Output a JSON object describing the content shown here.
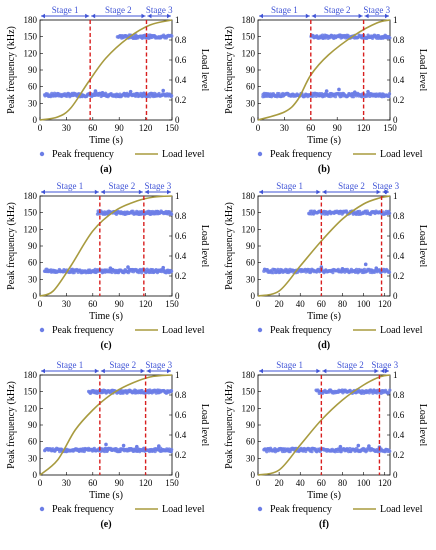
{
  "legend": {
    "peak": "Peak frequency",
    "load": "Load level"
  },
  "colors": {
    "peak": "#6c7ee6",
    "load": "#a89b3f",
    "stage": "#d81f1f",
    "arrow": "#3f53d6"
  },
  "panels": [
    {
      "label": "(a)",
      "stages": [
        "Stage 1",
        "Stage 2",
        "Stage 3"
      ],
      "chart_data": {
        "type": "scatter",
        "xlabel": "Time (s)",
        "ylabel": "Peak frequency (kHz)",
        "y2label": "Load level",
        "xlim": [
          0,
          150
        ],
        "xticks": [
          0,
          30,
          60,
          90,
          120,
          150
        ],
        "ylim": [
          0,
          180
        ],
        "yticks": [
          0,
          30,
          60,
          90,
          120,
          150,
          180
        ],
        "y2lim": [
          0,
          1
        ],
        "y2ticks": [
          0,
          0.2,
          0.4,
          0.6,
          0.8,
          1
        ],
        "boundaries": [
          57,
          121
        ],
        "series": [
          {
            "name": "Peak frequency",
            "bands": [
              {
                "x": [
                  5,
                  150
                ],
                "y": 45
              },
              {
                "x": [
                  88,
                  150
                ],
                "y": 150
              }
            ],
            "extra": [
              [
                63,
                52
              ],
              [
                71,
                49
              ],
              [
                103,
                51
              ],
              [
                118,
                48
              ],
              [
                140,
                53
              ]
            ]
          },
          {
            "name": "Load level",
            "load": [
              [
                0,
                0
              ],
              [
                20,
                0.03
              ],
              [
                35,
                0.12
              ],
              [
                55,
                0.38
              ],
              [
                75,
                0.62
              ],
              [
                100,
                0.82
              ],
              [
                125,
                0.95
              ],
              [
                150,
                1
              ]
            ]
          }
        ]
      }
    },
    {
      "label": "(b)",
      "stages": [
        "Stage 1",
        "Stage 2",
        "Stage 3"
      ],
      "chart_data": {
        "type": "scatter",
        "xlabel": "Time (s)",
        "ylabel": "Peak frequency (kHz)",
        "y2label": "Load level",
        "xlim": [
          0,
          150
        ],
        "xticks": [
          0,
          30,
          60,
          90,
          120,
          150
        ],
        "ylim": [
          0,
          180
        ],
        "yticks": [
          0,
          30,
          60,
          90,
          120,
          150,
          180
        ],
        "y2lim": [
          0,
          1
        ],
        "y2ticks": [
          0,
          0.2,
          0.4,
          0.6,
          0.8,
          1
        ],
        "boundaries": [
          60,
          120
        ],
        "series": [
          {
            "name": "Peak frequency",
            "bands": [
              {
                "x": [
                  5,
                  150
                ],
                "y": 45
              },
              {
                "x": [
                  60,
                  150
                ],
                "y": 150
              }
            ],
            "extra": [
              [
                78,
                52
              ],
              [
                92,
                55
              ],
              [
                110,
                50
              ],
              [
                125,
                51
              ]
            ]
          },
          {
            "name": "Load level",
            "load": [
              [
                0,
                0
              ],
              [
                30,
                0.08
              ],
              [
                45,
                0.2
              ],
              [
                60,
                0.45
              ],
              [
                80,
                0.65
              ],
              [
                110,
                0.85
              ],
              [
                135,
                0.97
              ],
              [
                150,
                1
              ]
            ]
          }
        ]
      }
    },
    {
      "label": "(c)",
      "stages": [
        "Stage 1",
        "Stage 2",
        "Stage 3"
      ],
      "chart_data": {
        "type": "scatter",
        "xlabel": "Time (s)",
        "ylabel": "Peak frequency (kHz)",
        "y2label": "Load level",
        "xlim": [
          0,
          150
        ],
        "xticks": [
          0,
          30,
          60,
          90,
          120,
          150
        ],
        "ylim": [
          0,
          180
        ],
        "yticks": [
          0,
          30,
          60,
          90,
          120,
          150,
          180
        ],
        "y2lim": [
          0,
          1
        ],
        "y2ticks": [
          0,
          0.2,
          0.4,
          0.6,
          0.8,
          1
        ],
        "boundaries": [
          68,
          118
        ],
        "series": [
          {
            "name": "Peak frequency",
            "bands": [
              {
                "x": [
                  5,
                  150
                ],
                "y": 45
              },
              {
                "x": [
                  65,
                  150
                ],
                "y": 150
              }
            ],
            "extra": [
              [
                80,
                50
              ],
              [
                100,
                52
              ],
              [
                140,
                51
              ]
            ]
          },
          {
            "name": "Load level",
            "load": [
              [
                0,
                0
              ],
              [
                15,
                0.05
              ],
              [
                35,
                0.3
              ],
              [
                60,
                0.65
              ],
              [
                85,
                0.85
              ],
              [
                110,
                0.95
              ],
              [
                130,
                0.99
              ],
              [
                150,
                1
              ]
            ]
          }
        ]
      }
    },
    {
      "label": "(d)",
      "stages": [
        "Stage 1",
        "Stage 2",
        "Stage 3"
      ],
      "chart_data": {
        "type": "scatter",
        "xlabel": "Time (s)",
        "ylabel": "Peak frequency (kHz)",
        "y2label": "Load level",
        "xlim": [
          0,
          125
        ],
        "xticks": [
          0,
          20,
          40,
          60,
          80,
          100,
          120
        ],
        "ylim": [
          0,
          180
        ],
        "yticks": [
          0,
          30,
          60,
          90,
          120,
          150,
          180
        ],
        "y2lim": [
          0,
          1
        ],
        "y2ticks": [
          0,
          0.2,
          0.4,
          0.6,
          0.8,
          1
        ],
        "boundaries": [
          60,
          117
        ],
        "series": [
          {
            "name": "Peak frequency",
            "bands": [
              {
                "x": [
                  5,
                  125
                ],
                "y": 45
              },
              {
                "x": [
                  48,
                  125
                ],
                "y": 150
              }
            ],
            "extra": [
              [
                60,
                52
              ],
              [
                80,
                49
              ],
              [
                102,
                57
              ],
              [
                112,
                50
              ]
            ]
          },
          {
            "name": "Load level",
            "load": [
              [
                0,
                0
              ],
              [
                20,
                0.05
              ],
              [
                40,
                0.3
              ],
              [
                60,
                0.55
              ],
              [
                80,
                0.77
              ],
              [
                100,
                0.92
              ],
              [
                115,
                0.98
              ],
              [
                125,
                1
              ]
            ]
          }
        ]
      }
    },
    {
      "label": "(e)",
      "stages": [
        "Stage 1",
        "Stage 2",
        "Stage 3"
      ],
      "chart_data": {
        "type": "scatter",
        "xlabel": "Time (s)",
        "ylabel": "Peak frequency (kHz)",
        "y2label": "Load level",
        "xlim": [
          0,
          150
        ],
        "xticks": [
          0,
          30,
          60,
          90,
          120,
          150
        ],
        "ylim": [
          0,
          180
        ],
        "yticks": [
          0,
          30,
          60,
          90,
          120,
          150,
          180
        ],
        "y2lim": [
          0,
          1
        ],
        "y2ticks": [
          0,
          0.2,
          0.4,
          0.6,
          0.8,
          1
        ],
        "boundaries": [
          68,
          120
        ],
        "series": [
          {
            "name": "Peak frequency",
            "bands": [
              {
                "x": [
                  5,
                  150
                ],
                "y": 45
              },
              {
                "x": [
                  55,
                  150
                ],
                "y": 150
              }
            ],
            "extra": [
              [
                75,
                55
              ],
              [
                95,
                53
              ],
              [
                110,
                51
              ],
              [
                135,
                52
              ]
            ]
          },
          {
            "name": "Load level",
            "load": [
              [
                0,
                0
              ],
              [
                20,
                0.15
              ],
              [
                40,
                0.45
              ],
              [
                60,
                0.65
              ],
              [
                80,
                0.8
              ],
              [
                100,
                0.9
              ],
              [
                125,
                0.98
              ],
              [
                150,
                1
              ]
            ]
          }
        ]
      }
    },
    {
      "label": "(f)",
      "stages": [
        "Stage 1",
        "Stage 2",
        "Stage 3"
      ],
      "chart_data": {
        "type": "scatter",
        "xlabel": "Time (s)",
        "ylabel": "Peak frequency (kHz)",
        "y2label": "Load level",
        "xlim": [
          0,
          125
        ],
        "xticks": [
          0,
          20,
          40,
          60,
          80,
          100,
          120
        ],
        "ylim": [
          0,
          180
        ],
        "yticks": [
          0,
          30,
          60,
          90,
          120,
          150,
          180
        ],
        "y2lim": [
          0,
          1
        ],
        "y2ticks": [
          0,
          0.2,
          0.4,
          0.6,
          0.8,
          1
        ],
        "boundaries": [
          60,
          115
        ],
        "series": [
          {
            "name": "Peak frequency",
            "bands": [
              {
                "x": [
                  5,
                  125
                ],
                "y": 45
              },
              {
                "x": [
                  55,
                  125
                ],
                "y": 150
              }
            ],
            "extra": [
              [
                78,
                51
              ],
              [
                95,
                53
              ],
              [
                105,
                52
              ],
              [
                115,
                50
              ]
            ]
          },
          {
            "name": "Load level",
            "load": [
              [
                0,
                0
              ],
              [
                20,
                0.05
              ],
              [
                40,
                0.3
              ],
              [
                60,
                0.55
              ],
              [
                80,
                0.75
              ],
              [
                100,
                0.9
              ],
              [
                115,
                0.98
              ],
              [
                125,
                1
              ]
            ]
          }
        ]
      }
    }
  ]
}
